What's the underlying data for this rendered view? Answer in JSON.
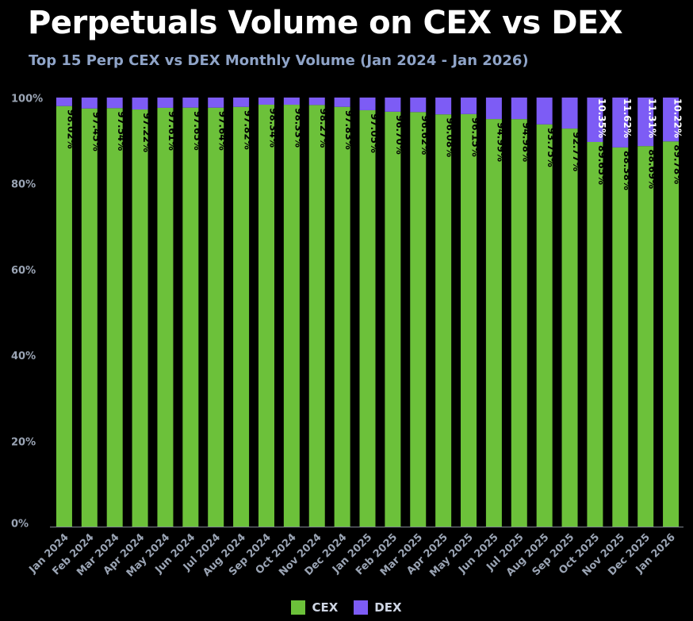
{
  "header": {
    "title": "Perpetuals Volume on CEX vs DEX",
    "subtitle": "Top 15 Perp CEX vs DEX Monthly Volume (Jan 2024 - Jan 2026)"
  },
  "colors": {
    "background": "#000000",
    "cex": "#6cc13a",
    "dex": "#7d5cf5",
    "axis_text": "#9aa4b4",
    "axis_line": "#7f8792"
  },
  "chart_data": {
    "type": "bar",
    "stacked": true,
    "percent": true,
    "categories": [
      "Jan 2024",
      "Feb 2024",
      "Mar 2024",
      "Apr 2024",
      "May 2024",
      "Jun 2024",
      "Jul 2024",
      "Aug 2024",
      "Sep 2024",
      "Oct 2024",
      "Nov 2024",
      "Dec 2024",
      "Jan 2025",
      "Feb 2025",
      "Mar 2025",
      "Apr 2025",
      "May 2025",
      "Jun 2025",
      "Jul 2025",
      "Aug 2025",
      "Sep 2025",
      "Oct 2025",
      "Nov 2025",
      "Dec 2025",
      "Jan 2026"
    ],
    "series": [
      {
        "name": "CEX",
        "values": [
          98.02,
          97.45,
          97.54,
          97.22,
          97.61,
          97.65,
          97.64,
          97.82,
          98.34,
          98.33,
          98.27,
          97.83,
          97.05,
          96.7,
          96.62,
          96.08,
          96.15,
          94.99,
          94.98,
          93.75,
          92.77,
          89.65,
          88.38,
          88.69,
          89.78
        ],
        "labels": [
          "98.02%",
          "97.45%",
          "97.54%",
          "97.22%",
          "97.61%",
          "97.65%",
          "97.64%",
          "97.82%",
          "98.34%",
          "98.33%",
          "98.27%",
          "97.83%",
          "97.05%",
          "96.70%",
          "96.62%",
          "96.08%",
          "96.15%",
          "94.99%",
          "94.98%",
          "93.75%",
          "92.77%",
          "89.65%",
          "88.38%",
          "88.69%",
          "89.78%"
        ]
      },
      {
        "name": "DEX",
        "values": [
          1.98,
          2.55,
          2.46,
          2.78,
          2.39,
          2.35,
          2.36,
          2.18,
          1.66,
          1.67,
          1.73,
          2.17,
          2.95,
          3.3,
          3.38,
          3.92,
          3.85,
          5.01,
          5.02,
          6.25,
          7.23,
          10.35,
          11.62,
          11.31,
          10.22
        ],
        "labels": [
          "",
          "",
          "",
          "",
          "",
          "",
          "",
          "",
          "",
          "",
          "",
          "",
          "",
          "",
          "",
          "",
          "",
          "",
          "",
          "",
          "",
          "10.35%",
          "11.62%",
          "11.31%",
          "10.22%"
        ]
      }
    ],
    "yticks": [
      "0%",
      "20%",
      "40%",
      "60%",
      "80%",
      "100%"
    ],
    "ylim": [
      0,
      100
    ],
    "legend_position": "bottom-center",
    "grid": false
  }
}
